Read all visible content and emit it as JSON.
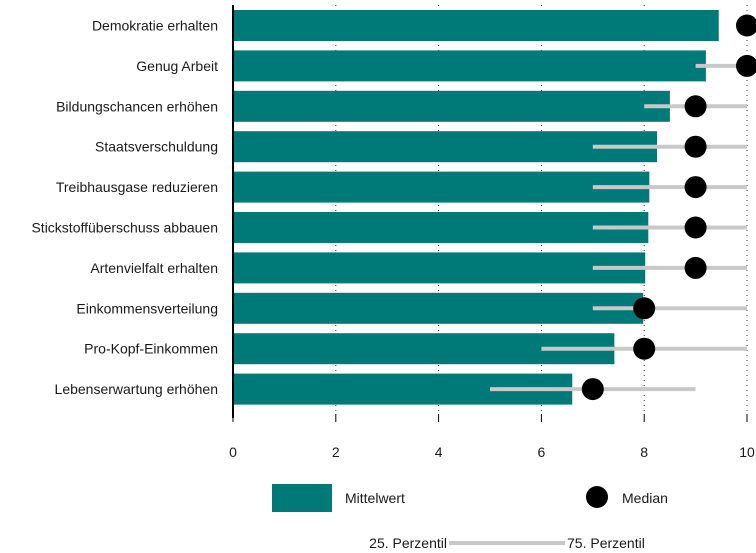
{
  "chart_data": {
    "type": "bar",
    "orientation": "horizontal",
    "categories": [
      "Demokratie erhalten",
      "Genug Arbeit",
      "Bildungschancen erhöhen",
      "Staatsverschuldung",
      "Treibhausgase reduzieren",
      "Stickstoffüberschuss abbauen",
      "Artenvielfalt erhalten",
      "Einkommensverteilung",
      "Pro-Kopf-Einkommen",
      "Lebenserwartung erhöhen"
    ],
    "series": [
      {
        "name": "Mittelwert",
        "values": [
          9.45,
          9.2,
          8.5,
          8.25,
          8.1,
          8.08,
          8.02,
          7.98,
          7.42,
          6.6
        ]
      },
      {
        "name": "Median",
        "values": [
          10,
          10,
          9,
          9,
          9,
          9,
          9,
          8,
          8,
          7
        ]
      }
    ],
    "p25": [
      10,
      9,
      8,
      7,
      7,
      7,
      7,
      7,
      6,
      5
    ],
    "p75": [
      10,
      10,
      10,
      10,
      10,
      10,
      10,
      10,
      10,
      9
    ],
    "xlim": [
      0,
      10
    ],
    "xticks": [
      "0",
      "2",
      "4",
      "6",
      "8",
      "10"
    ],
    "grid": "vertical dotted",
    "legend": {
      "mean_label": "Mittelwert",
      "median_label": "Median",
      "p25_label": "25. Perzentil",
      "p75_label": "75. Perzentil",
      "placement": "bottom"
    },
    "colors": {
      "bar": "#007a78",
      "median": "#000000",
      "range": "#c8c8c8"
    }
  }
}
